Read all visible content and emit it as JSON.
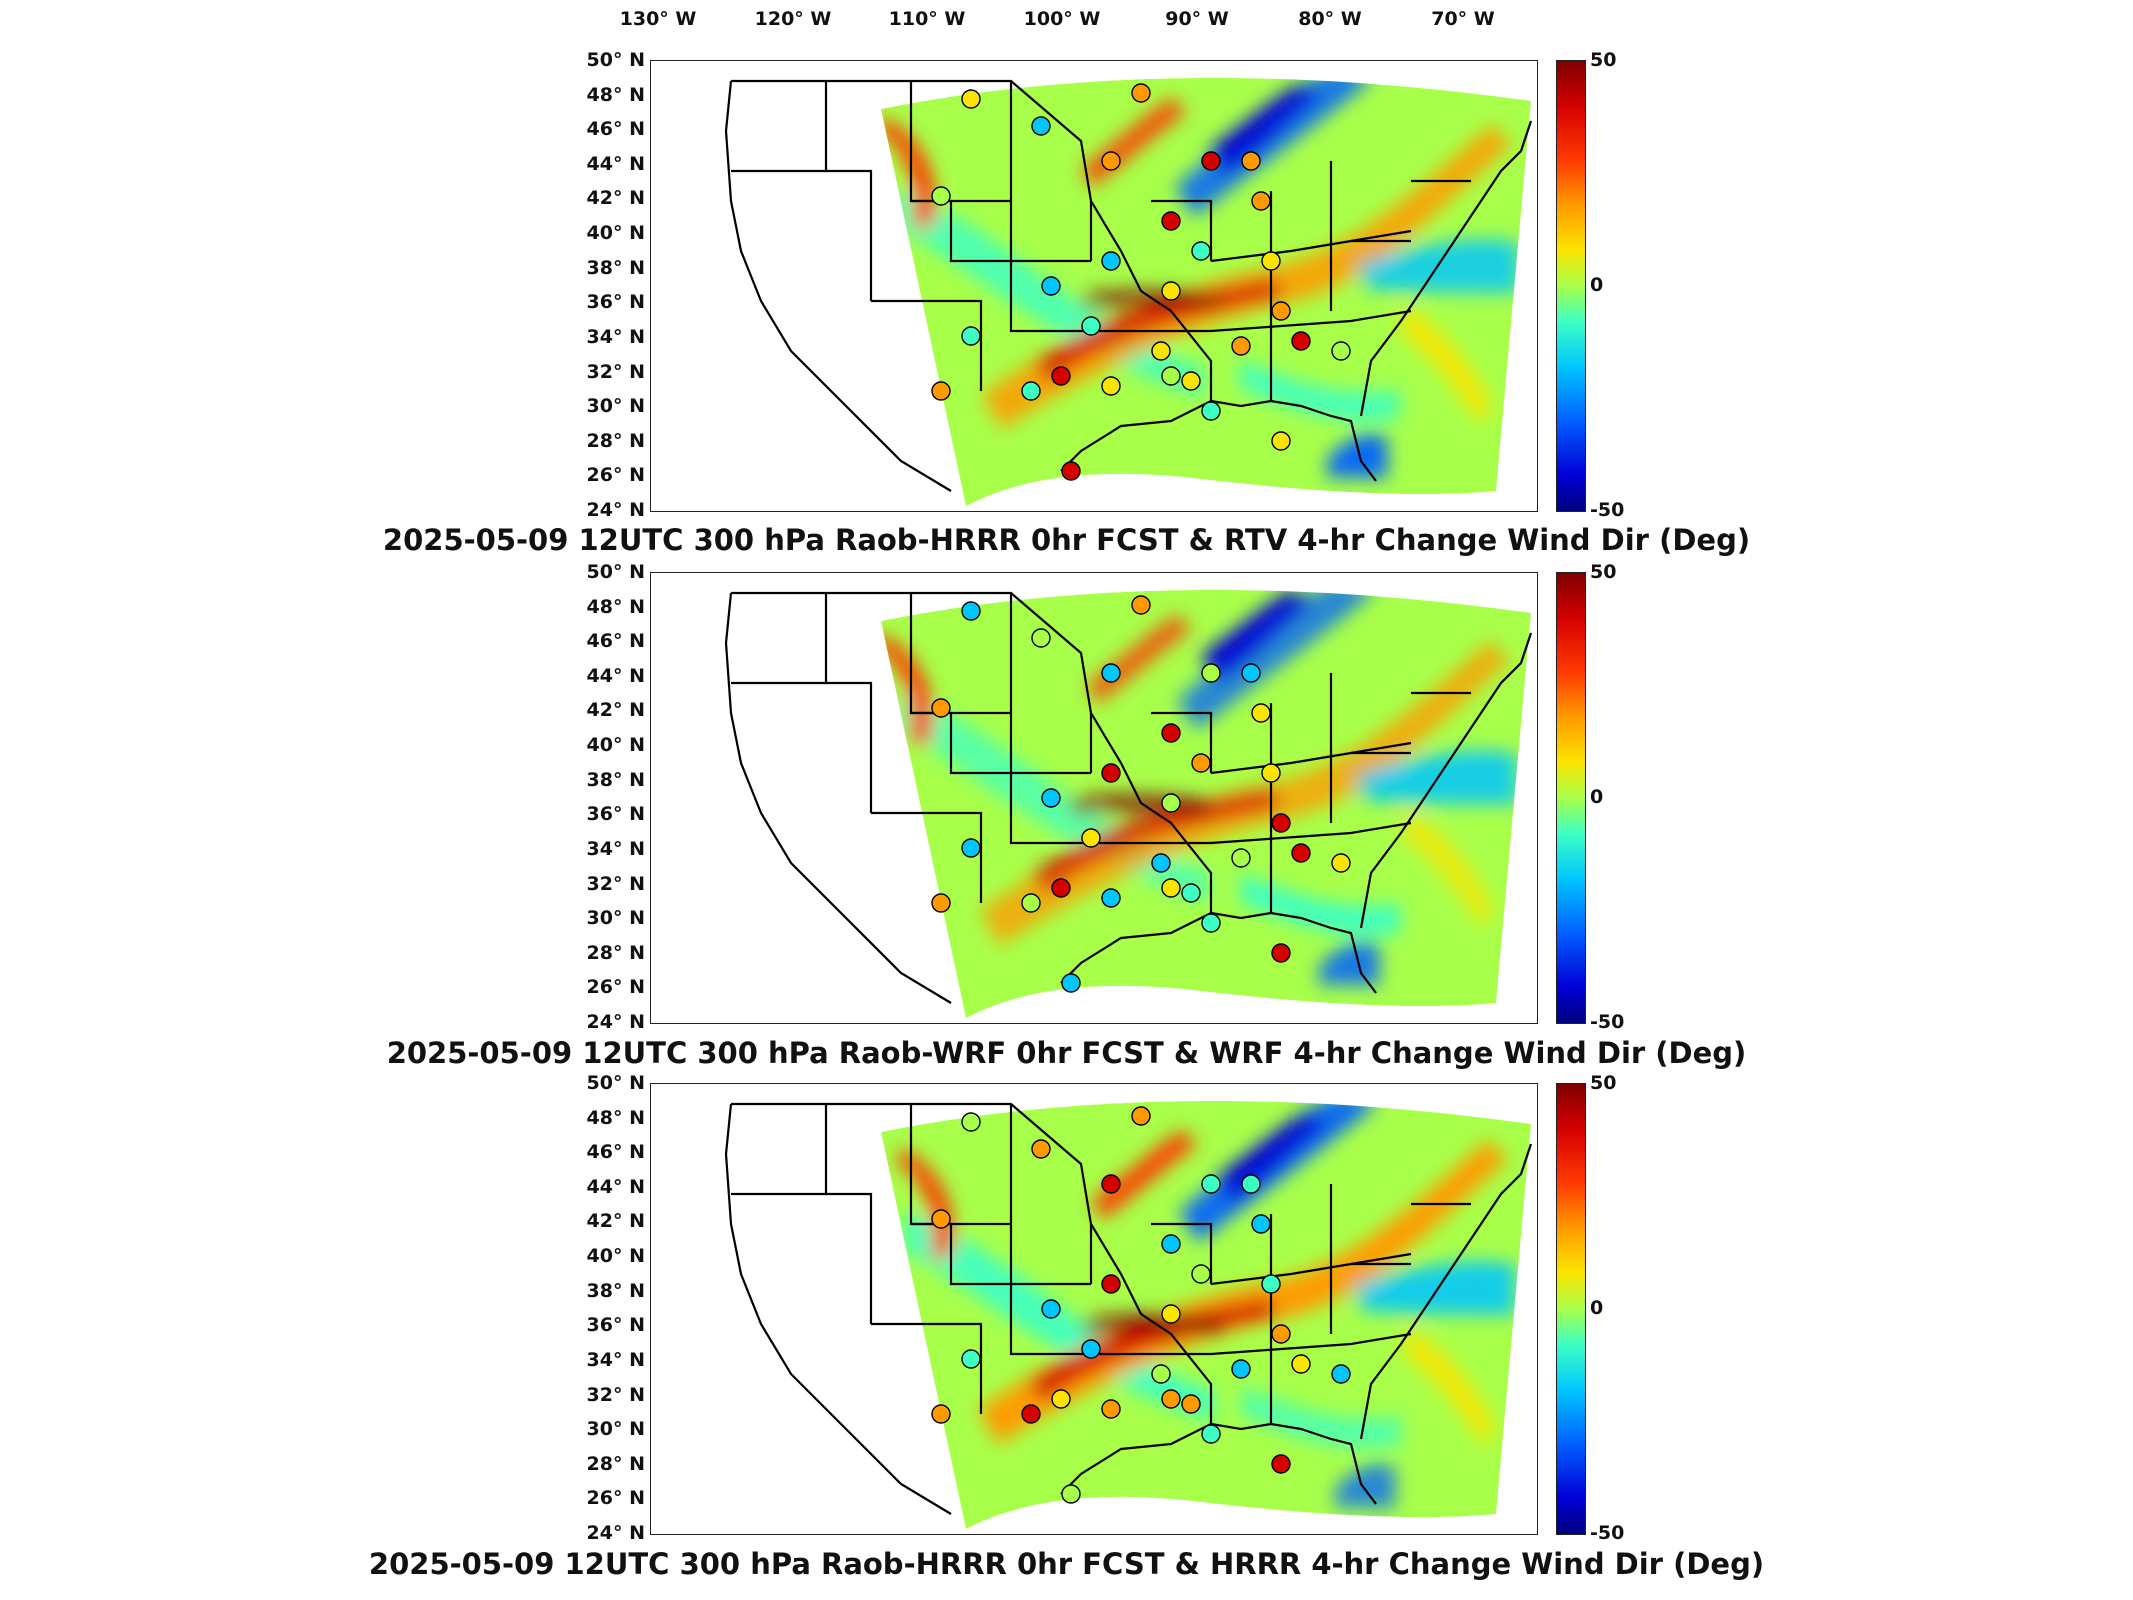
{
  "lon_labels": [
    "130° W",
    "120° W",
    "110° W",
    "100° W",
    "90° W",
    "80° W",
    "70° W"
  ],
  "lat_labels": [
    "50° N",
    "48° N",
    "46° N",
    "44° N",
    "42° N",
    "40° N",
    "38° N",
    "36° N",
    "34° N",
    "32° N",
    "30° N",
    "28° N",
    "26° N",
    "24° N"
  ],
  "colorbar": {
    "max": "50",
    "mid": "0",
    "min": "-50"
  },
  "panels": [
    {
      "title": "2025-05-09 12UTC 300 hPa Raob-HRRR 0hr FCST & RTV 4-hr Change Wind Dir (Deg)"
    },
    {
      "title": "2025-05-09 12UTC 300 hPa Raob-WRF 0hr FCST & WRF 4-hr Change Wind Dir (Deg)"
    },
    {
      "title": "2025-05-09 12UTC 300 hPa Raob-HRRR 0hr FCST & HRRR 4-hr Change Wind Dir (Deg)"
    }
  ],
  "colors": {
    "red": "#d40000",
    "orange": "#ff9a00",
    "green": "#a8ff4a",
    "cyan": "#3cffc4",
    "blue": "#0060ff"
  }
}
